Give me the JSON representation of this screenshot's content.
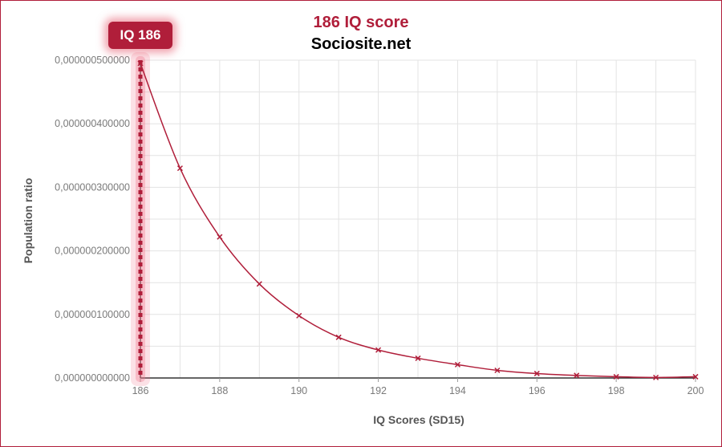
{
  "title": "186 IQ score",
  "subtitle": "Sociosite.net",
  "badge": "IQ 186",
  "colors": {
    "accent": "#b01e3a",
    "grid": "#e3e3e3",
    "axis": "#333333"
  },
  "chart_data": {
    "type": "line",
    "title": "186 IQ score",
    "subtitle": "Sociosite.net",
    "xlabel": "IQ Scores (SD15)",
    "ylabel": "Population ratio",
    "xlim": [
      186,
      200
    ],
    "ylim": [
      0,
      5e-07
    ],
    "x_ticks": [
      186,
      188,
      190,
      192,
      194,
      196,
      198,
      200
    ],
    "x_tick_labels": [
      "186",
      "188",
      "190",
      "192",
      "194",
      "196",
      "198",
      "200"
    ],
    "y_ticks": [
      0,
      1e-07,
      2e-07,
      3e-07,
      4e-07,
      5e-07
    ],
    "y_tick_labels": [
      "0,000000000000",
      "0,000000100000",
      "0,000000200000",
      "0,000000300000",
      "0,000000400000",
      "0,000000500000"
    ],
    "grid": true,
    "series": [
      {
        "x": [
          186,
          187,
          188,
          189,
          190,
          191,
          192,
          193,
          194,
          195,
          196,
          197,
          198,
          199,
          200
        ],
        "values": [
          4.95e-07,
          3.3e-07,
          2.22e-07,
          1.48e-07,
          9.8e-08,
          6.4e-08,
          4.4e-08,
          3.1e-08,
          2.1e-08,
          1.2e-08,
          7e-09,
          4e-09,
          2e-09,
          8e-10,
          2e-09
        ]
      }
    ],
    "marker": {
      "x": 186,
      "label": "IQ 186"
    }
  }
}
